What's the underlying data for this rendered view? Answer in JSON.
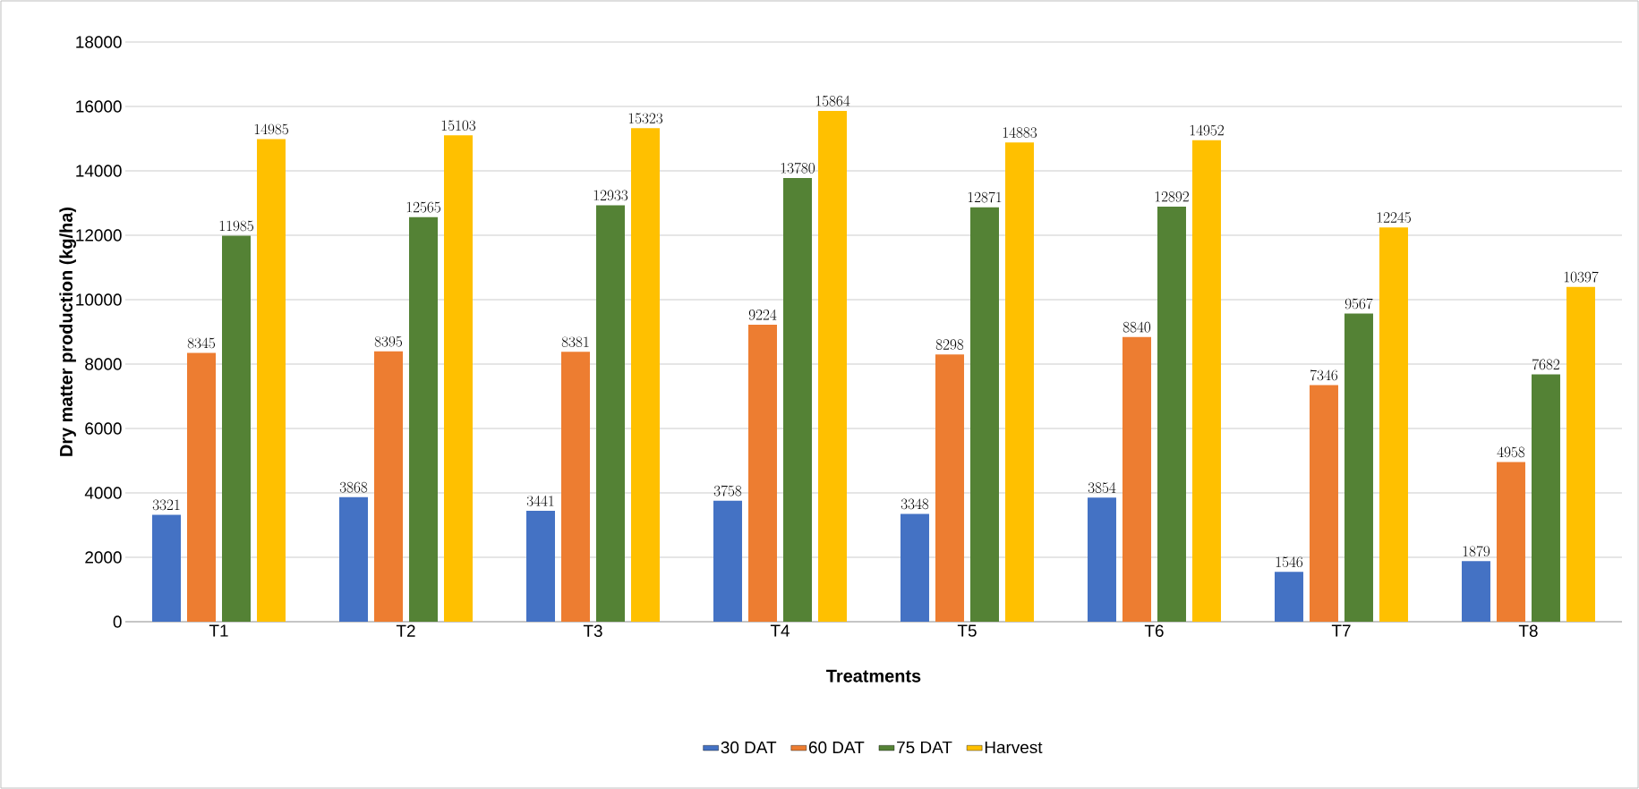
{
  "chart_data": {
    "type": "bar",
    "xlabel": "Treatments",
    "ylabel": "Dry matter production (kg/ha)",
    "categories": [
      "T1",
      "T2",
      "T3",
      "T4",
      "T5",
      "T6",
      "T7",
      "T8"
    ],
    "series": [
      {
        "name": "30 DAT",
        "color": "#4472c4",
        "values": [
          3321,
          3868,
          3441,
          3758,
          3348,
          3854,
          1546,
          1879
        ]
      },
      {
        "name": "60 DAT",
        "color": "#ed7d31",
        "values": [
          8345,
          8395,
          8381,
          9224,
          8298,
          8840,
          7346,
          4958
        ]
      },
      {
        "name": "75 DAT",
        "color": "#548235",
        "values": [
          11985,
          12565,
          12933,
          13780,
          12871,
          12892,
          9567,
          7682
        ]
      },
      {
        "name": "Harvest",
        "color": "#ffc000",
        "values": [
          14985,
          15103,
          15323,
          15864,
          14883,
          14952,
          12245,
          10397
        ]
      }
    ],
    "ylim": [
      0,
      18000
    ],
    "yticks": [
      0,
      2000,
      4000,
      6000,
      8000,
      10000,
      12000,
      14000,
      16000,
      18000
    ],
    "grid": "y",
    "legend": "bottom",
    "data_labels": true
  }
}
